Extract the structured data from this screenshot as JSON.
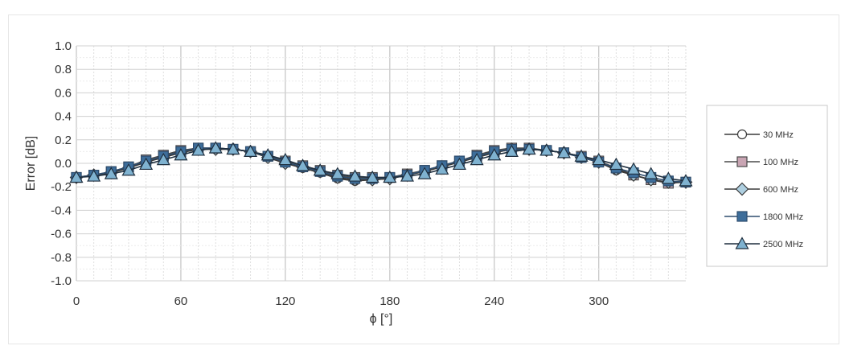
{
  "chart_data": {
    "type": "line",
    "title": "",
    "xlabel": "ϕ [°]",
    "ylabel": "Error [dB]",
    "xlim": [
      0,
      350
    ],
    "ylim": [
      -1.0,
      1.0
    ],
    "x_ticks": [
      "0",
      "60",
      "120",
      "180",
      "240",
      "300"
    ],
    "y_ticks": [
      "1.0",
      "0.8",
      "0.6",
      "0.4",
      "0.2",
      "0.0",
      "-0.2",
      "-0.4",
      "-0.6",
      "-0.8",
      "-1.0"
    ],
    "grid": true,
    "legend_position": "right",
    "x": [
      0,
      10,
      20,
      30,
      40,
      50,
      60,
      70,
      80,
      90,
      100,
      110,
      120,
      130,
      140,
      150,
      160,
      170,
      180,
      190,
      200,
      210,
      220,
      230,
      240,
      250,
      260,
      270,
      280,
      290,
      300,
      310,
      320,
      330,
      340,
      350
    ],
    "series": [
      {
        "name": "30 MHz",
        "marker": "circle",
        "color": "#3a3a3a",
        "fill": "#ffffff",
        "values": [
          -0.12,
          -0.1,
          -0.08,
          -0.04,
          0.02,
          0.06,
          0.1,
          0.12,
          0.12,
          0.12,
          0.1,
          0.05,
          0.0,
          -0.04,
          -0.08,
          -0.13,
          -0.15,
          -0.14,
          -0.13,
          -0.1,
          -0.06,
          -0.02,
          0.02,
          0.06,
          0.1,
          0.12,
          0.12,
          0.11,
          0.09,
          0.06,
          0.01,
          -0.06,
          -0.1,
          -0.14,
          -0.16,
          -0.16
        ]
      },
      {
        "name": "100 MHz",
        "marker": "square",
        "color": "#4a4a4a",
        "fill": "#c9a5b3",
        "values": [
          -0.12,
          -0.1,
          -0.07,
          -0.03,
          0.03,
          0.07,
          0.11,
          0.13,
          0.13,
          0.12,
          0.1,
          0.06,
          0.02,
          -0.02,
          -0.06,
          -0.1,
          -0.12,
          -0.12,
          -0.12,
          -0.09,
          -0.06,
          -0.02,
          0.02,
          0.07,
          0.11,
          0.13,
          0.13,
          0.11,
          0.09,
          0.06,
          0.02,
          -0.04,
          -0.1,
          -0.14,
          -0.17,
          -0.16
        ]
      },
      {
        "name": "600 MHz",
        "marker": "diamond",
        "color": "#3a3a3a",
        "fill": "#aecfe0",
        "values": [
          -0.12,
          -0.1,
          -0.08,
          -0.04,
          0.01,
          0.05,
          0.09,
          0.12,
          0.12,
          0.12,
          0.1,
          0.05,
          0.0,
          -0.03,
          -0.07,
          -0.12,
          -0.14,
          -0.14,
          -0.13,
          -0.1,
          -0.07,
          -0.03,
          0.01,
          0.05,
          0.09,
          0.12,
          0.12,
          0.11,
          0.09,
          0.05,
          0.01,
          -0.05,
          -0.1,
          -0.14,
          -0.16,
          -0.16
        ]
      },
      {
        "name": "1800 MHz",
        "marker": "square",
        "color": "#2e4d6e",
        "fill": "#3d6d9a",
        "values": [
          -0.12,
          -0.1,
          -0.07,
          -0.03,
          0.02,
          0.06,
          0.1,
          0.13,
          0.13,
          0.12,
          0.1,
          0.06,
          0.01,
          -0.03,
          -0.07,
          -0.11,
          -0.13,
          -0.13,
          -0.12,
          -0.1,
          -0.06,
          -0.02,
          0.02,
          0.06,
          0.1,
          0.12,
          0.12,
          0.11,
          0.09,
          0.05,
          0.01,
          -0.04,
          -0.08,
          -0.12,
          -0.15,
          -0.16
        ]
      },
      {
        "name": "2500 MHz",
        "marker": "triangle",
        "color": "#1f2f3f",
        "fill": "#7fb2d0",
        "values": [
          -0.12,
          -0.11,
          -0.09,
          -0.06,
          -0.01,
          0.03,
          0.07,
          0.11,
          0.13,
          0.12,
          0.1,
          0.07,
          0.03,
          -0.02,
          -0.06,
          -0.09,
          -0.11,
          -0.12,
          -0.12,
          -0.11,
          -0.09,
          -0.05,
          -0.01,
          0.03,
          0.07,
          0.1,
          0.12,
          0.11,
          0.09,
          0.06,
          0.03,
          -0.01,
          -0.05,
          -0.09,
          -0.13,
          -0.15
        ]
      }
    ]
  }
}
